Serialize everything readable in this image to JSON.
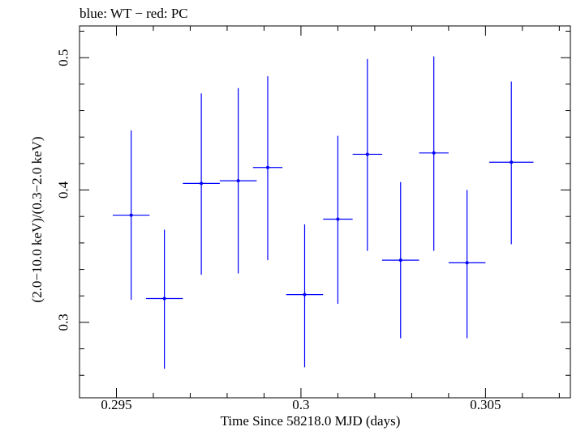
{
  "chart_data": {
    "type": "scatter",
    "title": "blue: WT − red: PC",
    "xlabel": "Time Since 58218.0 MJD (days)",
    "ylabel": "(2.0−10.0 keV)/(0.3−2.0 keV)",
    "xlim": [
      0.294,
      0.3073
    ],
    "ylim": [
      0.243,
      0.524
    ],
    "x_ticks": [
      {
        "value": 0.295,
        "label": "0.295"
      },
      {
        "value": 0.3,
        "label": "0.3"
      },
      {
        "value": 0.305,
        "label": "0.305"
      }
    ],
    "y_ticks": [
      {
        "value": 0.3,
        "label": "0.3"
      },
      {
        "value": 0.4,
        "label": "0.4"
      },
      {
        "value": 0.5,
        "label": "0.5"
      }
    ],
    "grid": false,
    "series": [
      {
        "color": "#0000ff",
        "points": [
          {
            "x": 0.2954,
            "y": 0.381,
            "xerr": 0.0005,
            "ylo": 0.317,
            "yhi": 0.445
          },
          {
            "x": 0.2963,
            "y": 0.318,
            "xerr": 0.0005,
            "ylo": 0.265,
            "yhi": 0.37
          },
          {
            "x": 0.2973,
            "y": 0.405,
            "xerr": 0.0005,
            "ylo": 0.336,
            "yhi": 0.473
          },
          {
            "x": 0.2983,
            "y": 0.407,
            "xerr": 0.0005,
            "ylo": 0.337,
            "yhi": 0.477
          },
          {
            "x": 0.2991,
            "y": 0.417,
            "xerr": 0.0004,
            "ylo": 0.347,
            "yhi": 0.486
          },
          {
            "x": 0.3001,
            "y": 0.321,
            "xerr": 0.0005,
            "ylo": 0.266,
            "yhi": 0.374
          },
          {
            "x": 0.301,
            "y": 0.378,
            "xerr": 0.0004,
            "ylo": 0.314,
            "yhi": 0.441
          },
          {
            "x": 0.3018,
            "y": 0.427,
            "xerr": 0.0004,
            "ylo": 0.354,
            "yhi": 0.499
          },
          {
            "x": 0.3027,
            "y": 0.347,
            "xerr": 0.0005,
            "ylo": 0.288,
            "yhi": 0.406
          },
          {
            "x": 0.3036,
            "y": 0.428,
            "xerr": 0.0004,
            "ylo": 0.354,
            "yhi": 0.501
          },
          {
            "x": 0.3045,
            "y": 0.345,
            "xerr": 0.0005,
            "ylo": 0.288,
            "yhi": 0.4
          },
          {
            "x": 0.3057,
            "y": 0.421,
            "xerr": 0.0006,
            "ylo": 0.359,
            "yhi": 0.482
          }
        ]
      }
    ]
  }
}
